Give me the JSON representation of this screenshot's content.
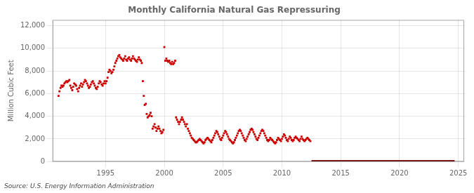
{
  "chart_data": {
    "type": "scatter",
    "title": "Monthly California Natural Gas Repressuring",
    "ylabel": "Million Cubic Feet",
    "annotation": "Source: U.S. Energy Information Administration",
    "xlim": [
      1990.5,
      2025.5
    ],
    "xticks": [
      1995,
      2000,
      2005,
      2010,
      2015,
      2020,
      2025
    ],
    "ylim": [
      0,
      12500
    ],
    "yticks": [
      0,
      {
        "value": 2000,
        "label": "2,000"
      },
      {
        "value": 4000,
        "label": "4,000"
      },
      {
        "value": 6000,
        "label": "6,000"
      },
      {
        "value": 8000,
        "label": "8,000"
      },
      {
        "value": 10000,
        "label": "10,000"
      },
      {
        "value": 12000,
        "label": "12,000"
      }
    ],
    "grid": true,
    "series": [
      {
        "type": "scatter",
        "color": "#cc0000",
        "marker": "square",
        "x": [
          1991.0,
          1991.08,
          1991.17,
          1991.25,
          1991.33,
          1991.42,
          1991.5,
          1991.58,
          1991.67,
          1991.75,
          1991.83,
          1991.92,
          1992.0,
          1992.08,
          1992.17,
          1992.25,
          1992.33,
          1992.42,
          1992.5,
          1992.58,
          1992.67,
          1992.75,
          1992.83,
          1992.92,
          1993.0,
          1993.08,
          1993.17,
          1993.25,
          1993.33,
          1993.42,
          1993.5,
          1993.58,
          1993.67,
          1993.75,
          1993.83,
          1993.92,
          1994.0,
          1994.08,
          1994.17,
          1994.25,
          1994.33,
          1994.42,
          1994.5,
          1994.58,
          1994.67,
          1994.75,
          1994.83,
          1994.92,
          1995.0,
          1995.08,
          1995.17,
          1995.25,
          1995.33,
          1995.42,
          1995.5,
          1995.58,
          1995.67,
          1995.75,
          1995.83,
          1995.92,
          1996.0,
          1996.08,
          1996.17,
          1996.25,
          1996.33,
          1996.42,
          1996.5,
          1996.58,
          1996.67,
          1996.75,
          1996.83,
          1996.92,
          1997.0,
          1997.08,
          1997.17,
          1997.25,
          1997.33,
          1997.42,
          1997.5,
          1997.58,
          1997.67,
          1997.75,
          1997.83,
          1997.92,
          1998.0,
          1998.08,
          1998.17,
          1998.25,
          1998.33,
          1998.42,
          1998.5,
          1998.58,
          1998.67,
          1998.75,
          1998.83,
          1998.92,
          1999.0,
          1999.08,
          1999.17,
          1999.25,
          1999.33,
          1999.42,
          1999.5,
          1999.58,
          1999.67,
          1999.75,
          1999.83,
          1999.92,
          2000.0,
          2000.08,
          2000.17,
          2000.25,
          2000.33,
          2000.42,
          2000.5,
          2000.58,
          2000.67,
          2000.75,
          2000.83,
          2000.92,
          2001.0,
          2001.08,
          2001.17,
          2001.25,
          2001.33,
          2001.42,
          2001.5,
          2001.58,
          2001.67,
          2001.75,
          2001.83,
          2001.92,
          2002.0,
          2002.08,
          2002.17,
          2002.25,
          2002.33,
          2002.42,
          2002.5,
          2002.58,
          2002.67,
          2002.75,
          2002.83,
          2002.92,
          2003.0,
          2003.08,
          2003.17,
          2003.25,
          2003.33,
          2003.42,
          2003.5,
          2003.58,
          2003.67,
          2003.75,
          2003.83,
          2003.92,
          2004.0,
          2004.08,
          2004.17,
          2004.25,
          2004.33,
          2004.42,
          2004.5,
          2004.58,
          2004.67,
          2004.75,
          2004.83,
          2004.92,
          2005.0,
          2005.08,
          2005.17,
          2005.25,
          2005.33,
          2005.42,
          2005.5,
          2005.58,
          2005.67,
          2005.75,
          2005.83,
          2005.92,
          2006.0,
          2006.08,
          2006.17,
          2006.25,
          2006.33,
          2006.42,
          2006.5,
          2006.58,
          2006.67,
          2006.75,
          2006.83,
          2006.92,
          2007.0,
          2007.08,
          2007.17,
          2007.25,
          2007.33,
          2007.42,
          2007.5,
          2007.58,
          2007.67,
          2007.75,
          2007.83,
          2007.92,
          2008.0,
          2008.08,
          2008.17,
          2008.25,
          2008.33,
          2008.42,
          2008.5,
          2008.58,
          2008.67,
          2008.75,
          2008.83,
          2008.92,
          2009.0,
          2009.08,
          2009.17,
          2009.25,
          2009.33,
          2009.42,
          2009.5,
          2009.58,
          2009.67,
          2009.75,
          2009.83,
          2009.92,
          2010.0,
          2010.08,
          2010.17,
          2010.25,
          2010.33,
          2010.42,
          2010.5,
          2010.58,
          2010.67,
          2010.75,
          2010.83,
          2010.92,
          2011.0,
          2011.08,
          2011.17,
          2011.25,
          2011.33,
          2011.42,
          2011.5,
          2011.58,
          2011.67,
          2011.75,
          2011.83,
          2011.92,
          2012.0,
          2012.08,
          2012.17,
          2012.25,
          2012.33,
          2012.42
        ],
        "values": [
          5800,
          6200,
          6500,
          6700,
          6600,
          6700,
          6900,
          7000,
          7100,
          7000,
          7100,
          7200,
          6700,
          6500,
          6300,
          6600,
          6900,
          6800,
          6700,
          6400,
          6200,
          6500,
          6700,
          6900,
          6600,
          6800,
          7000,
          7200,
          7100,
          6900,
          6700,
          6500,
          6600,
          6800,
          7000,
          7100,
          6900,
          6700,
          6500,
          6400,
          6600,
          6900,
          7100,
          7000,
          6800,
          6700,
          6900,
          7100,
          6900,
          7100,
          7400,
          7900,
          8100,
          8000,
          7800,
          7900,
          8100,
          8400,
          8700,
          8900,
          9100,
          9300,
          9400,
          9200,
          9100,
          9000,
          8900,
          9100,
          9300,
          9000,
          8900,
          9100,
          9200,
          9000,
          8900,
          9100,
          9300,
          9100,
          9000,
          8900,
          8800,
          9000,
          9200,
          9000,
          8900,
          8700,
          7100,
          5800,
          5000,
          5100,
          4200,
          3900,
          4000,
          4100,
          4300,
          4000,
          2900,
          3100,
          3300,
          3000,
          2700,
          2900,
          3100,
          2900,
          2700,
          2500,
          2600,
          2800,
          10100,
          8900,
          9100,
          8900,
          8800,
          8900,
          8700,
          8600,
          8800,
          8600,
          8700,
          8900,
          3900,
          3700,
          3500,
          3300,
          3500,
          3700,
          3900,
          3700,
          3500,
          3300,
          3100,
          3300,
          2900,
          2700,
          2500,
          2300,
          2100,
          2000,
          1900,
          1800,
          1700,
          1700,
          1800,
          1900,
          2000,
          1900,
          1800,
          1700,
          1600,
          1700,
          1900,
          2000,
          2100,
          2000,
          1900,
          1800,
          1700,
          1900,
          2100,
          2300,
          2500,
          2700,
          2600,
          2400,
          2200,
          2000,
          1900,
          2100,
          2300,
          2500,
          2700,
          2600,
          2400,
          2200,
          2000,
          1900,
          1800,
          1700,
          1600,
          1700,
          1900,
          2100,
          2300,
          2500,
          2700,
          2800,
          2700,
          2500,
          2300,
          2100,
          1900,
          1800,
          2000,
          2200,
          2400,
          2600,
          2800,
          2900,
          2800,
          2600,
          2400,
          2200,
          2000,
          1900,
          2100,
          2300,
          2500,
          2700,
          2800,
          2700,
          2500,
          2300,
          2100,
          1900,
          1800,
          1900,
          2100,
          2000,
          1900,
          1800,
          1700,
          1600,
          1700,
          1900,
          2100,
          2000,
          1900,
          1800,
          2000,
          2200,
          2400,
          2300,
          2100,
          1900,
          1800,
          2000,
          2200,
          2100,
          1900,
          1800,
          1900,
          2100,
          2200,
          2100,
          2000,
          1900,
          1800,
          2000,
          2200,
          2000,
          1900,
          1800,
          1900,
          2000,
          2100,
          2000,
          1900,
          1800
        ]
      },
      {
        "type": "area",
        "color": "#8b1a1a",
        "x": [
          2012.5,
          2024.7
        ],
        "values": [
          130,
          130
        ]
      }
    ]
  }
}
